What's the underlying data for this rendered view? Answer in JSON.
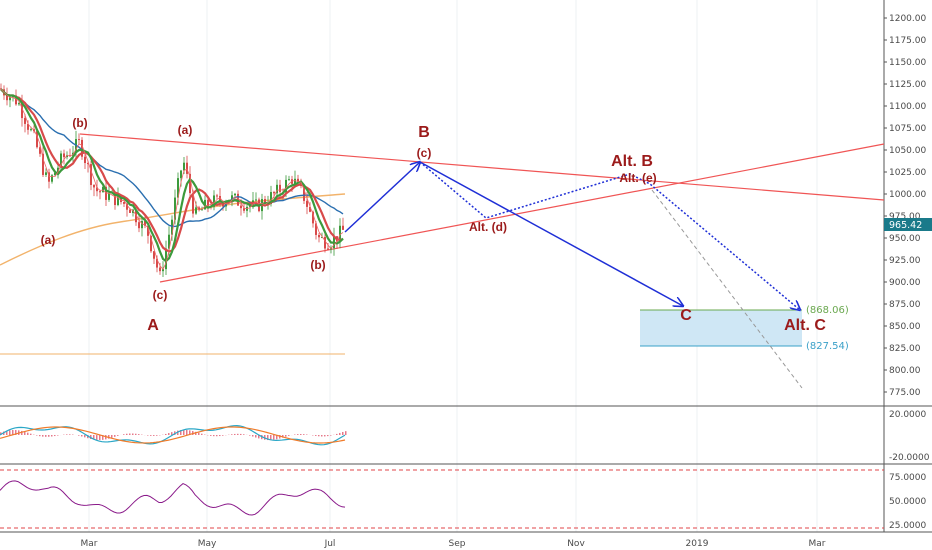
{
  "chart_data": [
    {
      "type": "line",
      "panel": "price",
      "y_ticks": [
        "1200.00",
        "1175.00",
        "1150.00",
        "1125.00",
        "1100.00",
        "1075.00",
        "1050.00",
        "1025.00",
        "1000.00",
        "975.00",
        "950.00",
        "925.00",
        "900.00",
        "875.00",
        "850.00",
        "825.00",
        "800.00",
        "775.00"
      ],
      "x_ticks": [
        "Mar",
        "May",
        "Jul",
        "Sep",
        "Nov",
        "2019",
        "Mar"
      ],
      "ylim": [
        765,
        1212
      ],
      "last_price": "965.42",
      "target_upper": "(868.06)",
      "target_lower": "(827.54)",
      "wave_labels": [
        {
          "text": "(b)",
          "x": 80,
          "y": 127,
          "size": "small"
        },
        {
          "text": "(a)",
          "x": 185,
          "y": 134,
          "size": "small"
        },
        {
          "text": "(a)",
          "x": 48,
          "y": 244,
          "size": "small"
        },
        {
          "text": "(c)",
          "x": 160,
          "y": 299,
          "size": "small"
        },
        {
          "text": "A",
          "x": 153,
          "y": 330,
          "size": "big"
        },
        {
          "text": "(b)",
          "x": 318,
          "y": 269,
          "size": "small"
        },
        {
          "text": "B",
          "x": 424,
          "y": 137,
          "size": "big"
        },
        {
          "text": "(c)",
          "x": 424,
          "y": 157,
          "size": "small"
        },
        {
          "text": "Alt. (d)",
          "x": 488,
          "y": 231,
          "size": "small",
          "weight": "normal"
        },
        {
          "text": "Alt. B",
          "x": 632,
          "y": 166,
          "size": "big"
        },
        {
          "text": "Alt. (e)",
          "x": 638,
          "y": 182,
          "size": "small",
          "weight": "normal"
        },
        {
          "text": "C",
          "x": 686,
          "y": 320,
          "size": "big"
        },
        {
          "text": "Alt. C",
          "x": 805,
          "y": 330,
          "size": "big"
        }
      ],
      "colors": {
        "wave_label": "#9b1a1a",
        "trendline": "#f05555",
        "projection": "#1f2fd6",
        "target_box": "#cfe7f5",
        "price_tag": "#1a7a8a"
      }
    },
    {
      "type": "line",
      "panel": "macd",
      "y_ticks": [
        "20.0000",
        "-20.0000"
      ]
    },
    {
      "type": "line",
      "panel": "rsi",
      "y_ticks": [
        "75.0000",
        "50.0000",
        "25.0000"
      ]
    }
  ]
}
